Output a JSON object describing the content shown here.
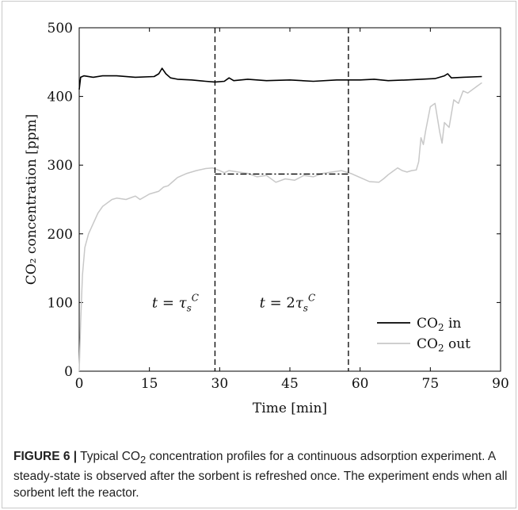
{
  "chart_data": {
    "type": "line",
    "xlabel": "Time [min]",
    "ylabel": "CO₂ concentration [ppm]",
    "xlim": [
      0,
      90
    ],
    "ylim": [
      0,
      500
    ],
    "xticks": [
      0,
      15,
      30,
      45,
      60,
      75,
      90
    ],
    "yticks": [
      0,
      100,
      200,
      300,
      400,
      500
    ],
    "grid": false,
    "legend_position": "bottom-right",
    "series": [
      {
        "name": "CO₂ in",
        "color": "#000000",
        "x": [
          0,
          0.3,
          1,
          3,
          5,
          8,
          12,
          16,
          17,
          17.7,
          18.5,
          19.5,
          21,
          24,
          27,
          29,
          31,
          32,
          33,
          36,
          40,
          45,
          50,
          55,
          60,
          63,
          66,
          70,
          73,
          76,
          78,
          78.7,
          79.5,
          82,
          86
        ],
        "y": [
          410,
          428,
          430,
          428,
          430,
          430,
          428,
          429,
          433,
          441,
          433,
          427,
          425,
          424,
          422,
          421,
          422,
          427,
          423,
          425,
          423,
          424,
          422,
          424,
          424,
          425,
          423,
          424,
          425,
          426,
          430,
          433,
          427,
          428,
          429
        ]
      },
      {
        "name": "CO₂ out",
        "color": "#c8c8c8",
        "x": [
          0,
          0.3,
          0.7,
          1.2,
          2,
          3,
          4,
          5,
          6,
          7,
          8,
          10,
          12,
          13,
          15,
          17,
          18,
          19,
          20,
          21,
          22,
          23,
          25,
          27,
          28.5,
          30,
          31,
          32,
          34,
          36,
          38,
          40,
          42,
          44,
          46,
          48,
          50,
          52,
          54,
          56,
          58,
          60,
          62,
          64,
          65,
          66,
          67,
          68,
          69,
          70,
          71,
          72,
          72.5,
          73,
          73.5,
          74,
          75,
          76,
          77,
          77.5,
          78,
          79,
          80,
          81,
          82,
          83,
          85,
          86
        ],
        "y": [
          0,
          70,
          140,
          180,
          200,
          215,
          230,
          240,
          245,
          250,
          252,
          250,
          255,
          250,
          258,
          262,
          268,
          270,
          276,
          282,
          285,
          288,
          292,
          295,
          296,
          292,
          289,
          292,
          290,
          288,
          283,
          285,
          275,
          280,
          278,
          285,
          283,
          288,
          290,
          292,
          288,
          282,
          276,
          275,
          280,
          286,
          291,
          296,
          292,
          290,
          292,
          293,
          305,
          340,
          330,
          350,
          385,
          390,
          348,
          332,
          362,
          355,
          395,
          390,
          408,
          405,
          415,
          420
        ]
      }
    ],
    "reference_lines": [
      {
        "type": "vertical",
        "x": 29,
        "style": "dashed",
        "label": "t = τ_s^C"
      },
      {
        "type": "vertical",
        "x": 57.5,
        "style": "dashed",
        "label": "t = 2τ_s^C"
      },
      {
        "type": "horizontal",
        "y": 287,
        "x_range": [
          29,
          57.5
        ],
        "style": "dashdot"
      }
    ]
  },
  "caption": {
    "label": "FIGURE 6 |",
    "text_parts": [
      "Typical CO",
      "2",
      " concentration profiles for a continuous adsorption experiment. A steady-state is observed after the sorbent is refreshed once. The experiment ends when all sorbent left the reactor."
    ]
  }
}
